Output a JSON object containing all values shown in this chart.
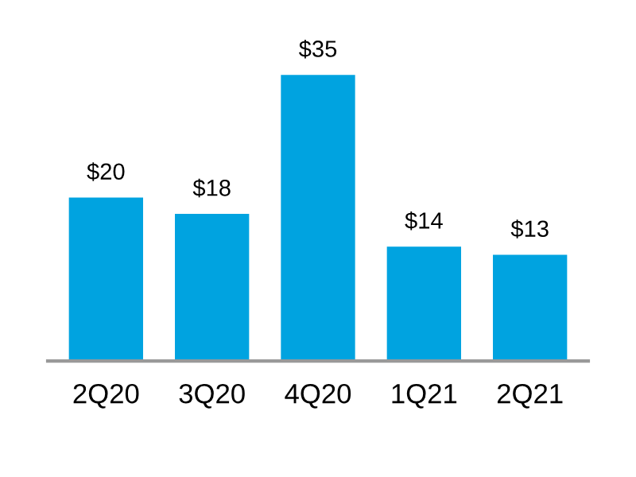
{
  "chart_data": {
    "type": "bar",
    "categories": [
      "2Q20",
      "3Q20",
      "4Q20",
      "1Q21",
      "2Q21"
    ],
    "values": [
      20,
      18,
      35,
      14,
      13
    ],
    "value_labels": [
      "$20",
      "$18",
      "$35",
      "$14",
      "$13"
    ],
    "color": "#00a3e0",
    "tick_labels": "x",
    "grid": false,
    "legend": false
  }
}
